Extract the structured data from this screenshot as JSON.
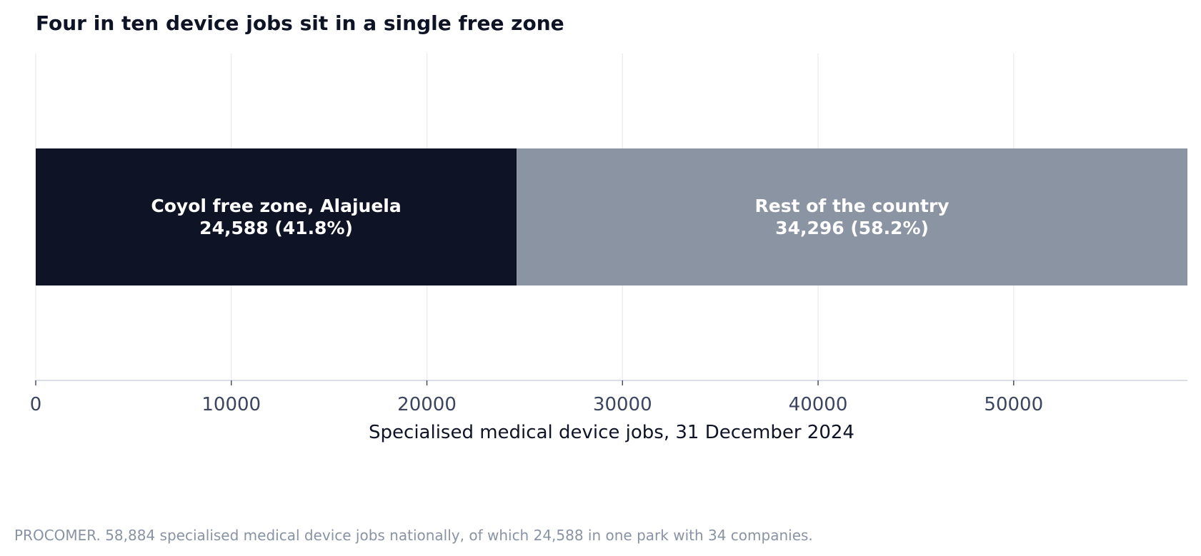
{
  "chart_data": {
    "type": "bar",
    "orientation": "horizontal",
    "stacked": true,
    "title": "Four in ten device jobs sit in a single free zone",
    "xlabel": "Specialised medical device jobs, 31 December 2024",
    "ylabel": "",
    "xlim": [
      0,
      58884
    ],
    "xticks": [
      0,
      10000,
      20000,
      30000,
      40000,
      50000
    ],
    "xtick_labels": [
      "0",
      "10000",
      "20000",
      "30000",
      "40000",
      "50000"
    ],
    "grid": "vertical",
    "legend": "none",
    "series": [
      {
        "name": "Coyol free zone, Alajuela",
        "value": 24588,
        "label_line1": "Coyol free zone, Alajuela",
        "label_line2": "24,588  (41.8%)",
        "color": "#0e1325"
      },
      {
        "name": "Rest of the country",
        "value": 34296,
        "label_line1": "Rest of the country",
        "label_line2": "34,296  (58.2%)",
        "color": "#8a94a3"
      }
    ]
  },
  "source_note": "PROCOMER. 58,884 specialised medical device jobs nationally, of which 24,588 in one park with 34 companies.",
  "colors": {
    "title": "#0e1325",
    "axis": "#d0d4de",
    "grid": "#e8eaee",
    "tick_label": "#3b4560",
    "source": "#8a93a3",
    "segment_text": "#ffffff"
  }
}
